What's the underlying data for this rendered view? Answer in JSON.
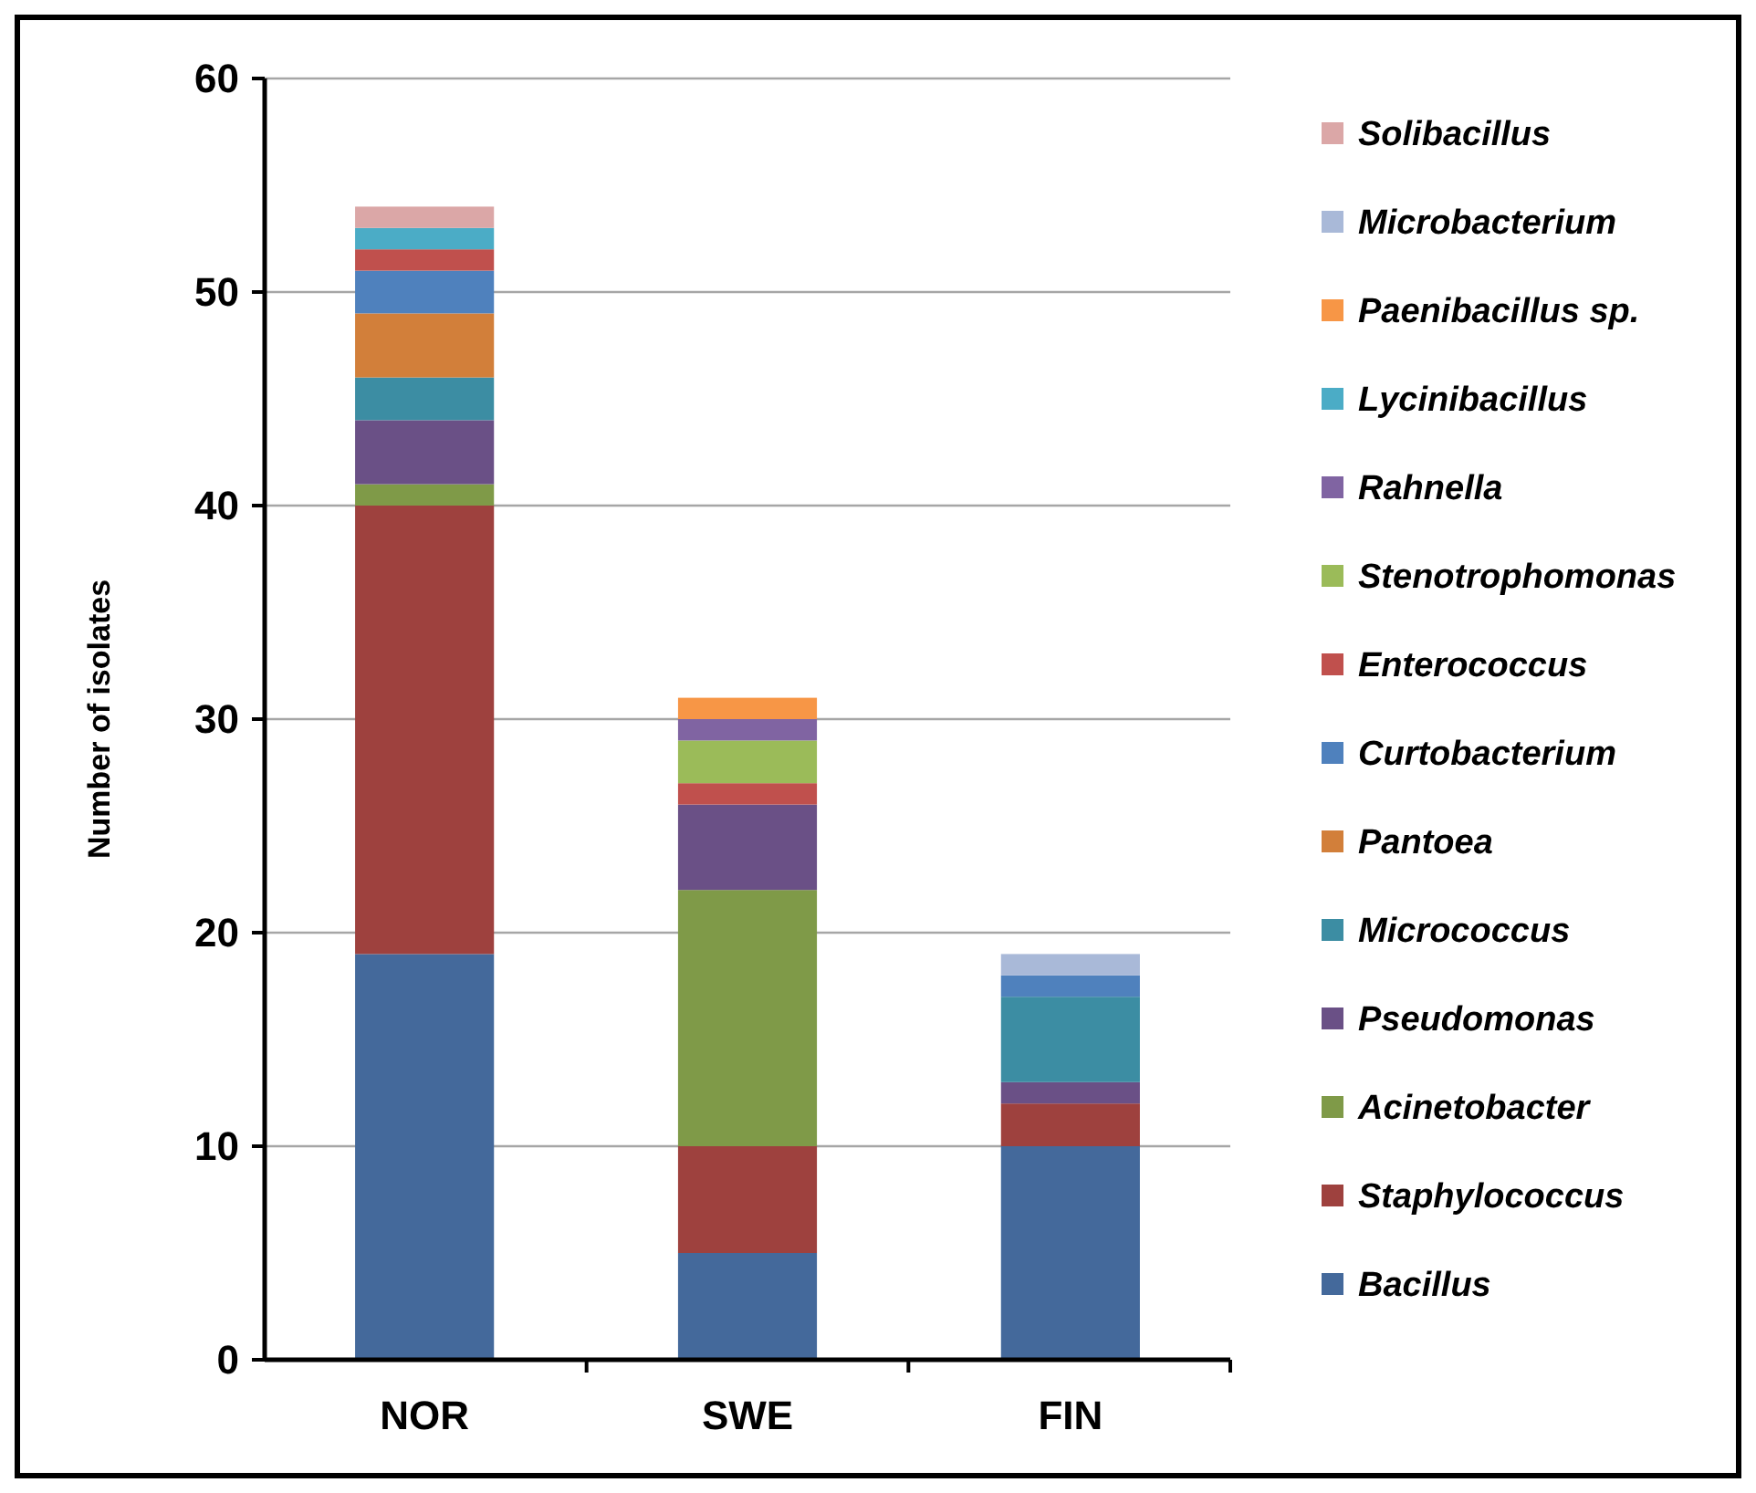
{
  "chart_data": {
    "type": "bar",
    "stacked": true,
    "ylabel": "Number of isolates",
    "categories": [
      "NOR",
      "SWE",
      "FIN"
    ],
    "ylim": [
      0,
      60
    ],
    "yticks": [
      0,
      10,
      20,
      30,
      40,
      50,
      60
    ],
    "grid": "y",
    "legend": "right",
    "series": [
      {
        "name": "Bacillus",
        "color": "#44699b",
        "values": [
          19,
          5,
          10
        ]
      },
      {
        "name": "Staphylococcus",
        "color": "#9e413e",
        "values": [
          21,
          5,
          2
        ]
      },
      {
        "name": "Acinetobacter",
        "color": "#7f9a48",
        "values": [
          1,
          12,
          0
        ]
      },
      {
        "name": "Pseudomonas",
        "color": "#6a5086",
        "values": [
          3,
          4,
          1
        ]
      },
      {
        "name": "Micrococcus",
        "color": "#3c8da3",
        "values": [
          2,
          0,
          4
        ]
      },
      {
        "name": "Pantoea",
        "color": "#d27f3a",
        "values": [
          3,
          0,
          0
        ]
      },
      {
        "name": "Curtobacterium",
        "color": "#4f81bd",
        "values": [
          2,
          0,
          1
        ]
      },
      {
        "name": "Enterococcus",
        "color": "#c0504d",
        "values": [
          1,
          1,
          0
        ]
      },
      {
        "name": "Stenotrophomonas",
        "color": "#9bbb59",
        "values": [
          0,
          2,
          0
        ]
      },
      {
        "name": "Rahnella",
        "color": "#8064a2",
        "values": [
          0,
          1,
          0
        ]
      },
      {
        "name": "Lycinibacillus",
        "color": "#4bacc6",
        "values": [
          1,
          0,
          0
        ]
      },
      {
        "name": "Paenibacillus sp.",
        "color": "#f79646",
        "values": [
          0,
          1,
          0
        ]
      },
      {
        "name": "Microbacterium",
        "color": "#a9b9d8",
        "values": [
          0,
          0,
          1
        ]
      },
      {
        "name": "Solibacillus",
        "color": "#dba7a7",
        "values": [
          1,
          0,
          0
        ]
      }
    ]
  }
}
